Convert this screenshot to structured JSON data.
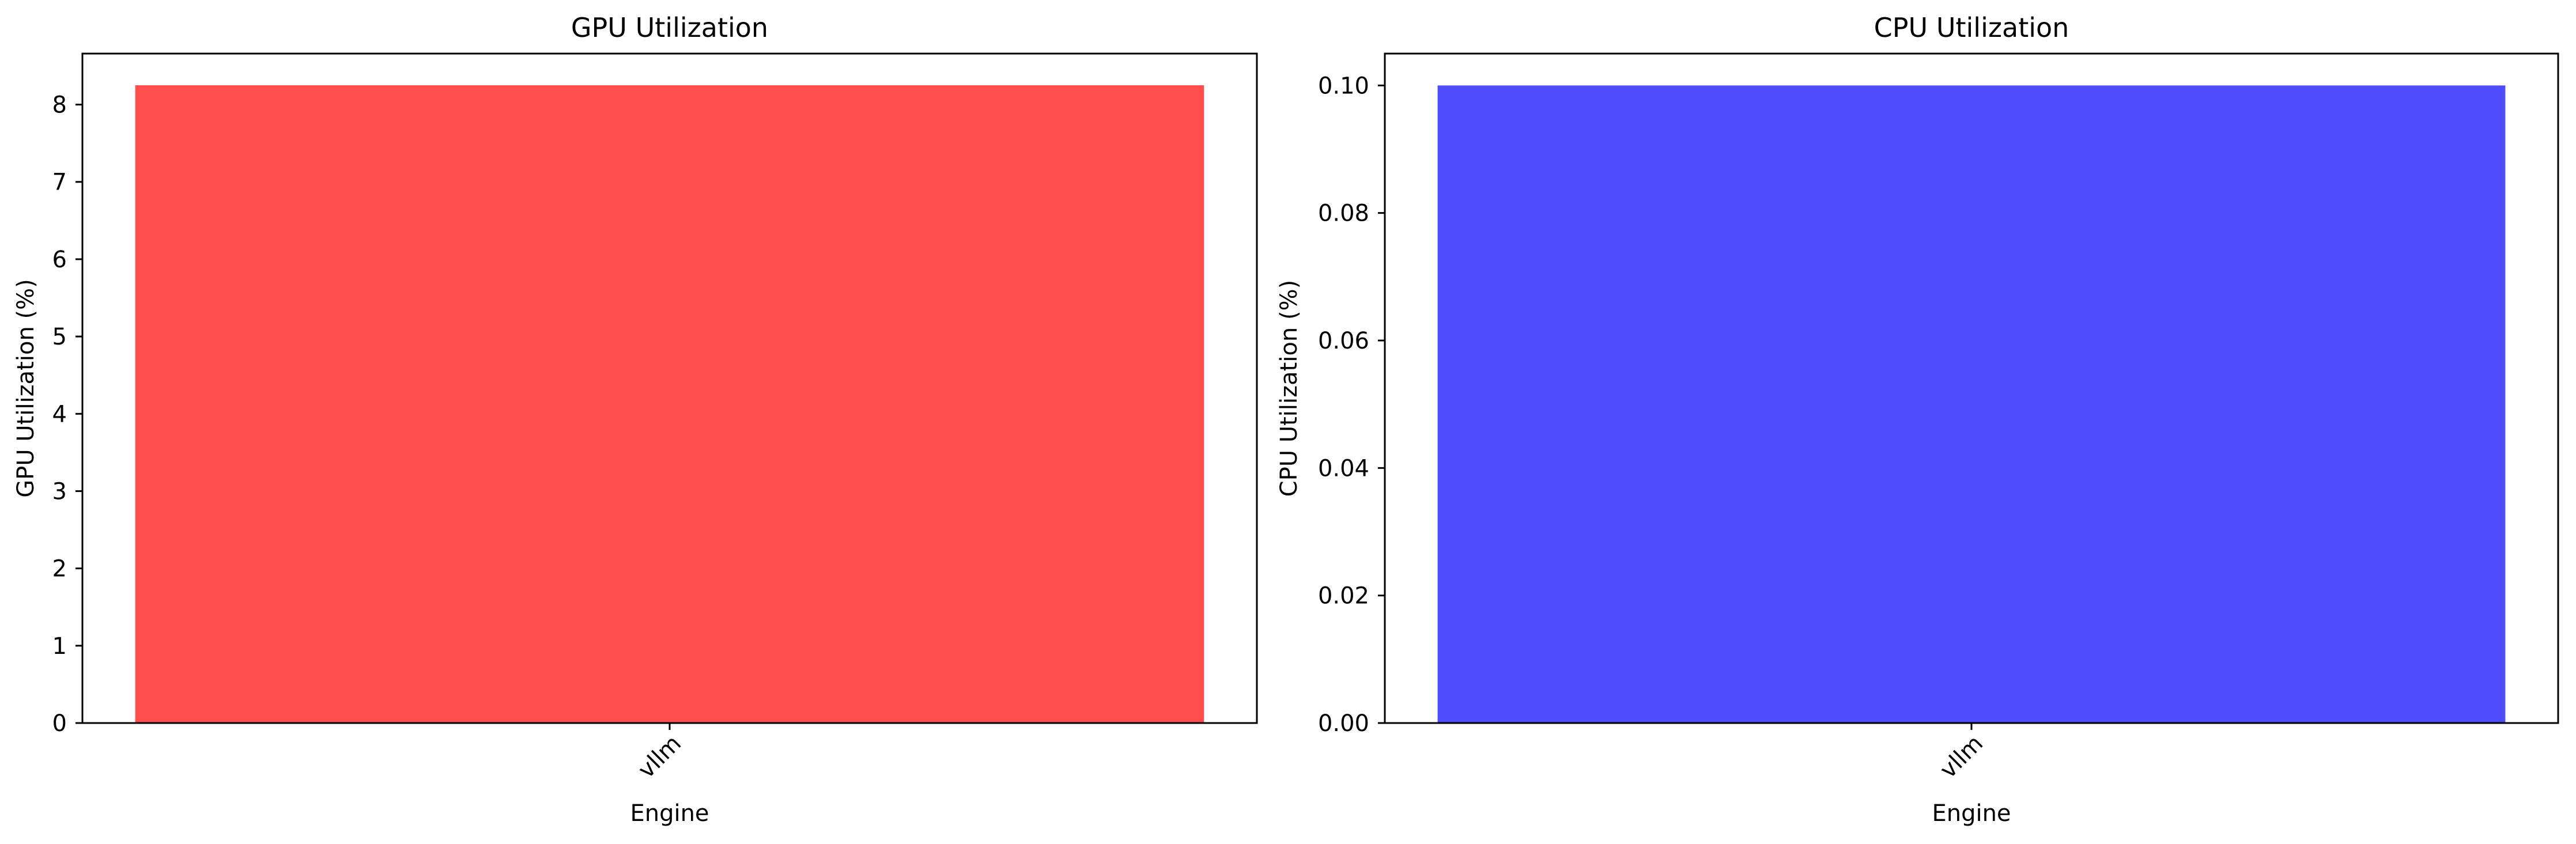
{
  "chart_data": [
    {
      "type": "bar",
      "title": "GPU Utilization",
      "xlabel": "Engine",
      "ylabel": "GPU Utilization (%)",
      "categories": [
        "vllm"
      ],
      "values": [
        8.25
      ],
      "ylim": [
        0,
        8.66
      ],
      "yticks": [
        0,
        1,
        2,
        3,
        4,
        5,
        6,
        7,
        8
      ],
      "ytick_labels": [
        "0",
        "1",
        "2",
        "3",
        "4",
        "5",
        "6",
        "7",
        "8"
      ],
      "color": "#ff4d4d",
      "grid": false,
      "legend": false
    },
    {
      "type": "bar",
      "title": "CPU Utilization",
      "xlabel": "Engine",
      "ylabel": "CPU Utilization (%)",
      "categories": [
        "vllm"
      ],
      "values": [
        0.1
      ],
      "ylim": [
        0,
        0.105
      ],
      "yticks": [
        0,
        0.02,
        0.04,
        0.06,
        0.08,
        0.1
      ],
      "ytick_labels": [
        "0.00",
        "0.02",
        "0.04",
        "0.06",
        "0.08",
        "0.10"
      ],
      "color": "#4d4dff",
      "grid": false,
      "legend": false
    }
  ]
}
